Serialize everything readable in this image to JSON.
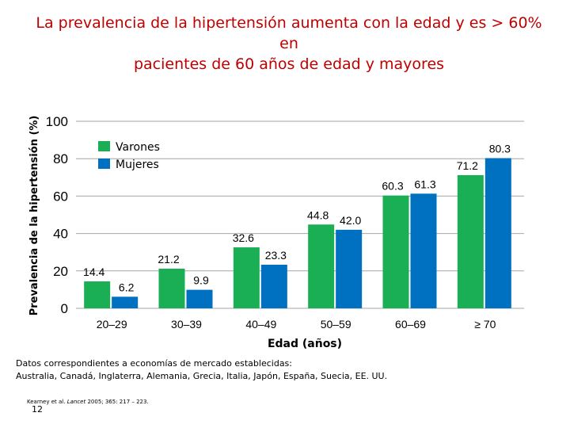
{
  "slide": {
    "title_line1": "La prevalencia de la hipertensión aumenta con la edad y es > 60% en",
    "title_line2": "pacientes de 60 años de edad y mayores",
    "note_line1": "Datos correspondientes a economías de mercado establecidas:",
    "note_line2": "Australia, Canadá, Inglaterra, Alemania, Grecia, Italia, Japón, España, Suecia, EE. UU.",
    "ref_authors": "Kearney et al.",
    "ref_journal": "Lancet",
    "ref_details": "2005; 365: 217 – 223.",
    "page_number": "12"
  },
  "chart_data": {
    "type": "bar",
    "title": "La prevalencia de la hipertensión aumenta con la edad y es > 60% en pacientes de 60 años de edad y mayores",
    "xlabel": "Edad (años)",
    "ylabel": "Prevalencia de la hipertensión (%)",
    "categories": [
      "20–29",
      "30–39",
      "40–49",
      "50–59",
      "60–69",
      "≥ 70"
    ],
    "series": [
      {
        "name": "Varones",
        "color": "#1aaf54",
        "values": [
          14.4,
          21.2,
          32.6,
          44.8,
          60.3,
          71.2
        ],
        "labels": [
          "14.4",
          "21.2",
          "32.6",
          "44.8",
          "60.3",
          "71.2"
        ]
      },
      {
        "name": "Mujeres",
        "color": "#0070c0",
        "values": [
          6.2,
          9.9,
          23.3,
          42.0,
          61.3,
          80.3
        ],
        "labels": [
          "6.2",
          "9.9",
          "23.3",
          "42.0",
          "61.3",
          "80.3"
        ]
      }
    ],
    "yticks": [
      "0",
      "20",
      "40",
      "60",
      "80",
      "100"
    ],
    "ylim": [
      0,
      100
    ],
    "grid": true,
    "legend": "top-left"
  }
}
